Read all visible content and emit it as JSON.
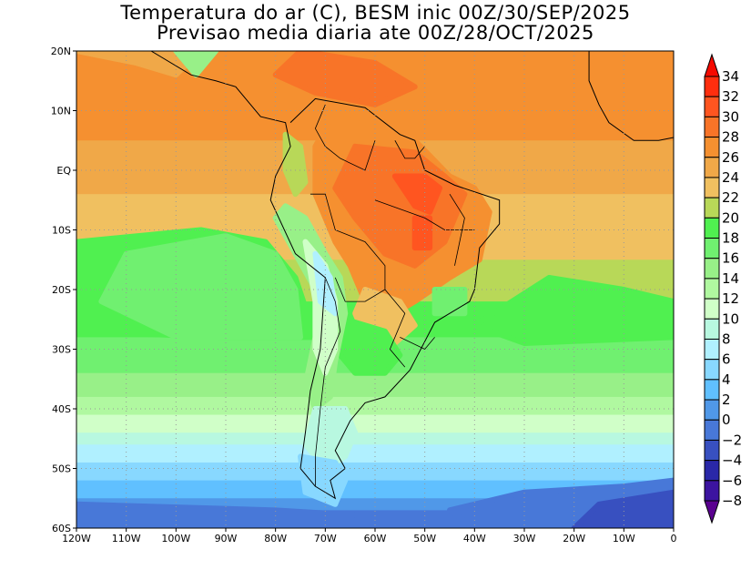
{
  "title": {
    "line1": "Temperatura do ar (C), BESM inic 00Z/30/SEP/2025",
    "line2": "Previsao media diaria ate 00Z/28/OCT/2025"
  },
  "axes": {
    "lat_labels": [
      "20N",
      "10N",
      "EQ",
      "10S",
      "20S",
      "30S",
      "40S",
      "50S",
      "60S"
    ],
    "lat_values": [
      20,
      10,
      0,
      -10,
      -20,
      -30,
      -40,
      -50,
      -60
    ],
    "lon_labels": [
      "120W",
      "110W",
      "100W",
      "90W",
      "80W",
      "70W",
      "60W",
      "50W",
      "40W",
      "30W",
      "20W",
      "10W",
      "0"
    ],
    "lon_values": [
      -120,
      -110,
      -100,
      -90,
      -80,
      -70,
      -60,
      -50,
      -40,
      -30,
      -20,
      -10,
      0
    ]
  },
  "colorbar": {
    "labels": [
      "34",
      "32",
      "30",
      "28",
      "26",
      "24",
      "22",
      "20",
      "18",
      "16",
      "14",
      "12",
      "10",
      "8",
      "6",
      "4",
      "2",
      "0",
      "-2",
      "-4",
      "-6",
      "-8"
    ],
    "colors": [
      "#f50a00",
      "#ff2e0e",
      "#ff5520",
      "#f87428",
      "#f59030",
      "#f0a848",
      "#f0c060",
      "#b8d858",
      "#50f050",
      "#70f070",
      "#98f088",
      "#b0f8a0",
      "#d0ffc8",
      "#b8f8e0",
      "#b0f0ff",
      "#88d8ff",
      "#60c0ff",
      "#5098e8",
      "#4878d8",
      "#3850c0",
      "#2a28a8",
      "#3c14a0",
      "#5a0090"
    ]
  }
}
